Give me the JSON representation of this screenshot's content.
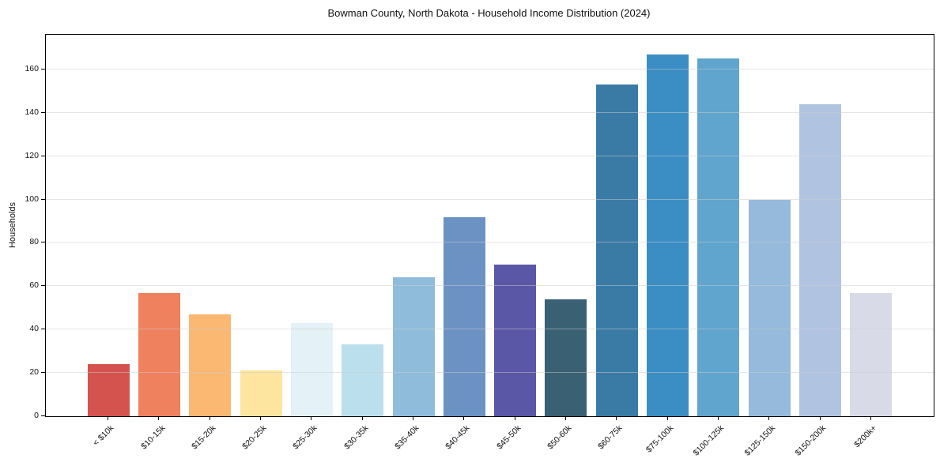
{
  "figure": {
    "background": "#ffffff"
  },
  "chart_data": {
    "type": "bar",
    "title": "Bowman County, North Dakota - Household Income Distribution (2024)",
    "xlabel": "",
    "ylabel": "Households",
    "categories": [
      "< $10k",
      "$10-15k",
      "$15-20k",
      "$20-25k",
      "$25-30k",
      "$30-35k",
      "$35-40k",
      "$40-45k",
      "$45-50k",
      "$50-60k",
      "$60-75k",
      "$75-100k",
      "$100-125k",
      "$125-150k",
      "$150-200k",
      "$200k+"
    ],
    "values": [
      24,
      57,
      47,
      21,
      43,
      33,
      64,
      92,
      70,
      54,
      153,
      167,
      165,
      100,
      144,
      57
    ],
    "bar_colors": [
      "#d5534f",
      "#f0815f",
      "#fab873",
      "#fde5a0",
      "#e4f1f7",
      "#bbdfed",
      "#90bcdc",
      "#6c92c4",
      "#5b57a7",
      "#3a6073",
      "#3a7ba6",
      "#3b8ec3",
      "#5fa5cd",
      "#95badb",
      "#b0c4e1",
      "#d8dae8"
    ],
    "ylim": [
      0,
      176
    ],
    "yticks": [
      0,
      20,
      40,
      60,
      80,
      100,
      120,
      140,
      160
    ],
    "grid": "horizontal",
    "grid_color": "#e3e3e3",
    "axis_color": "#000000",
    "legend": "none"
  }
}
